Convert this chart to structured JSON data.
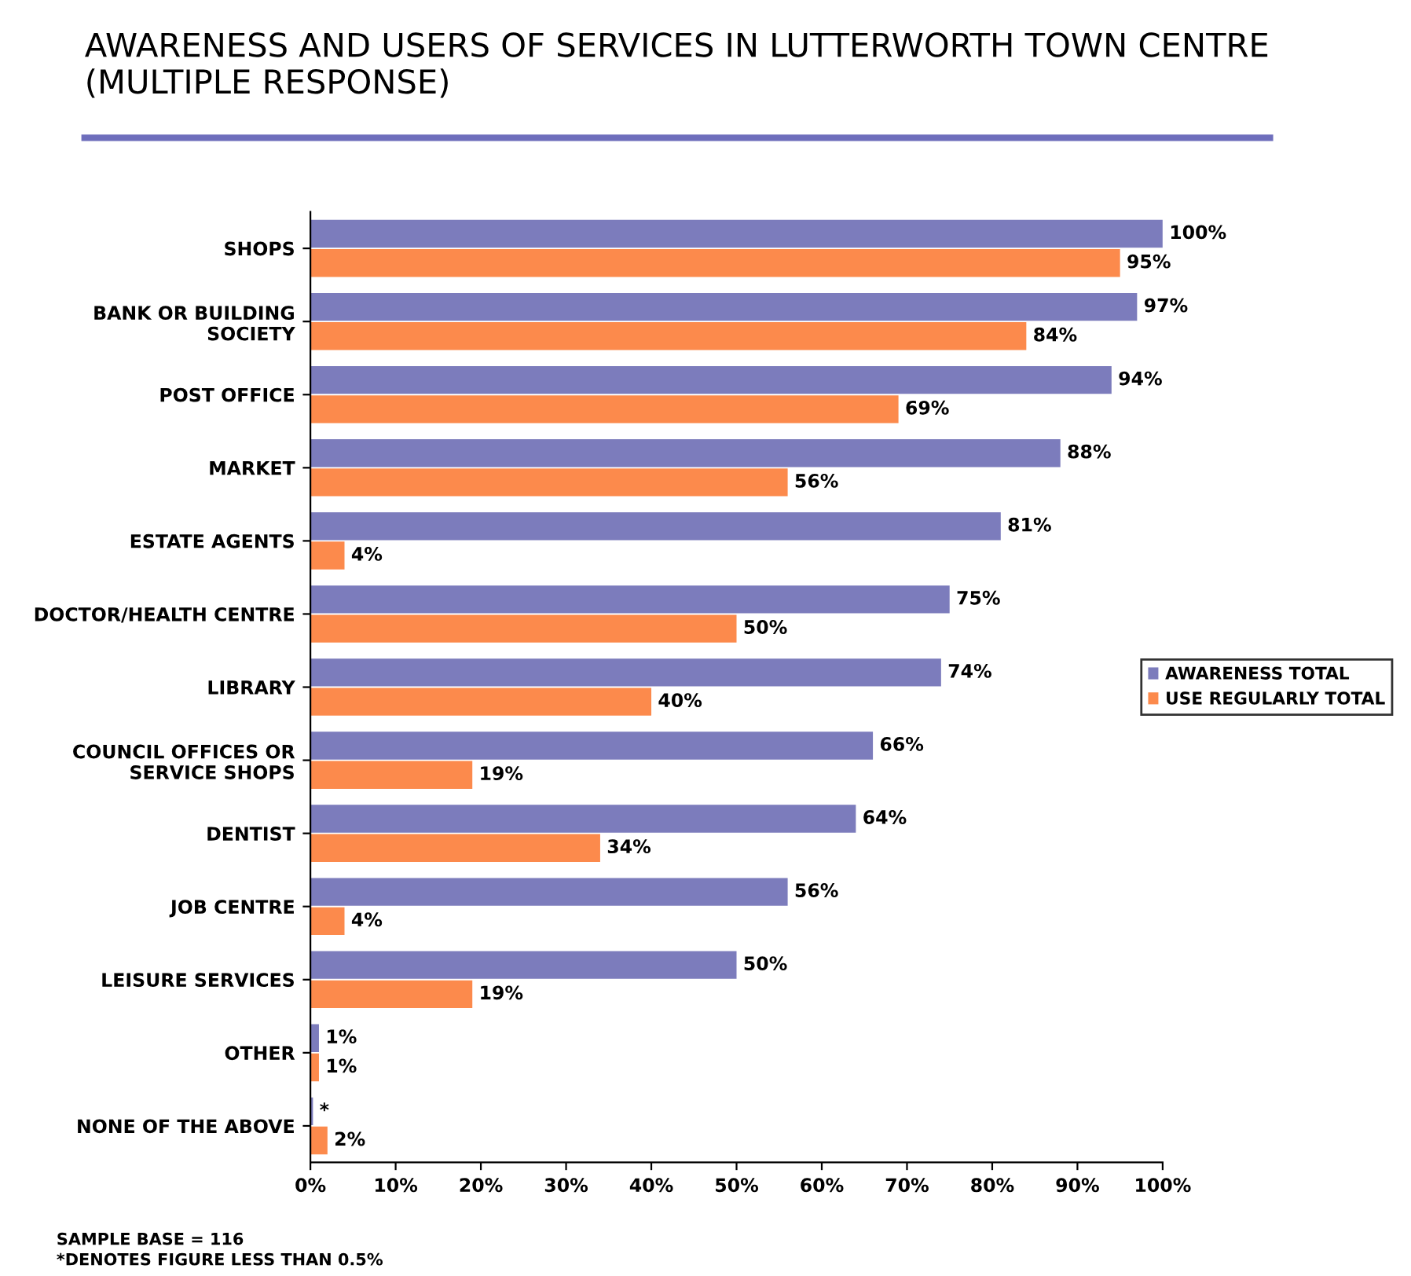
{
  "chart_data": {
    "type": "bar",
    "orientation": "horizontal",
    "title": "AWARENESS AND USERS OF SERVICES IN LUTTERWORTH TOWN CENTRE (MULTIPLE RESPONSE)",
    "categories": [
      "SHOPS",
      "BANK OR BUILDING\nSOCIETY",
      "POST OFFICE",
      "MARKET",
      "ESTATE AGENTS",
      "DOCTOR/HEALTH CENTRE",
      "LIBRARY",
      "COUNCIL OFFICES OR\nSERVICE SHOPS",
      "DENTIST",
      "JOB CENTRE",
      "LEISURE SERVICES",
      "OTHER",
      "NONE OF THE ABOVE"
    ],
    "series": [
      {
        "name": "AWARENESS TOTAL",
        "color": "#7c7cbc",
        "values": [
          100,
          97,
          94,
          88,
          81,
          75,
          74,
          66,
          64,
          56,
          50,
          1,
          0.3
        ],
        "value_labels": [
          "100%",
          "97%",
          "94%",
          "88%",
          "81%",
          "75%",
          "74%",
          "66%",
          "64%",
          "56%",
          "50%",
          "1%",
          "*"
        ]
      },
      {
        "name": "USE REGULARLY TOTAL",
        "color": "#fc8a4c",
        "values": [
          95,
          84,
          69,
          56,
          4,
          50,
          40,
          19,
          34,
          4,
          19,
          1,
          2
        ],
        "value_labels": [
          "95%",
          "84%",
          "69%",
          "56%",
          "4%",
          "50%",
          "40%",
          "19%",
          "34%",
          "4%",
          "19%",
          "1%",
          "2%"
        ]
      }
    ],
    "xlim": [
      0,
      100
    ],
    "xticks": [
      {
        "value": 0,
        "label": "0%"
      },
      {
        "value": 10,
        "label": "10%"
      },
      {
        "value": 20,
        "label": "20%"
      },
      {
        "value": 30,
        "label": "30%"
      },
      {
        "value": 40,
        "label": "40%"
      },
      {
        "value": 50,
        "label": "50%"
      },
      {
        "value": 60,
        "label": "60%"
      },
      {
        "value": 70,
        "label": "70%"
      },
      {
        "value": 80,
        "label": "80%"
      },
      {
        "value": 90,
        "label": "90%"
      },
      {
        "value": 100,
        "label": "100%"
      }
    ],
    "grid": false,
    "legend": "right",
    "annotations": [
      "SAMPLE BASE = 116",
      "*DENOTES FIGURE LESS THAN 0.5%"
    ]
  }
}
